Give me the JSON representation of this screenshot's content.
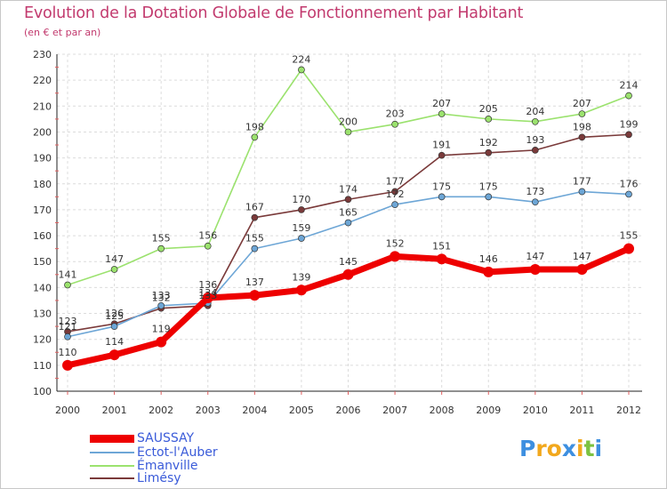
{
  "title": "Evolution de la Dotation Globale de Fonctionnement par Habitant",
  "subtitle": "(en € et par an)",
  "logo": {
    "letters": [
      {
        "ch": "P",
        "color": "#3d8fe0"
      },
      {
        "ch": "r",
        "color": "#f2a81d"
      },
      {
        "ch": "o",
        "color": "#f2a81d"
      },
      {
        "ch": "x",
        "color": "#3d8fe0"
      },
      {
        "ch": "i",
        "color": "#f2a81d"
      },
      {
        "ch": "t",
        "color": "#7cc241"
      },
      {
        "ch": "i",
        "color": "#3d8fe0"
      }
    ]
  },
  "chart_data": {
    "type": "line",
    "title": "Evolution de la Dotation Globale de Fonctionnement par Habitant",
    "subtitle": "(en € et par an)",
    "xlabel": "",
    "ylabel": "",
    "x": [
      "2000",
      "2001",
      "2002",
      "2003",
      "2004",
      "2005",
      "2006",
      "2007",
      "2008",
      "2009",
      "2010",
      "2011",
      "2012"
    ],
    "ylim": [
      100,
      230
    ],
    "yticks": [
      100,
      110,
      120,
      130,
      140,
      150,
      160,
      170,
      180,
      190,
      200,
      210,
      220,
      230
    ],
    "grid": true,
    "legend_position": "bottom-left",
    "series": [
      {
        "name": "SAUSSAY",
        "color": "#ee0000",
        "weight": "bold",
        "values": [
          110,
          114,
          119,
          136,
          137,
          139,
          145,
          152,
          151,
          146,
          147,
          147,
          155
        ],
        "labels": [
          "110",
          "114",
          "119",
          "136",
          "137",
          "139",
          "145",
          "152",
          "151",
          "146",
          "147",
          "147",
          "155"
        ]
      },
      {
        "name": "Ectot-l'Auber",
        "color": "#6da6d6",
        "weight": "normal",
        "values": [
          121,
          125,
          133,
          134,
          155,
          159,
          165,
          172,
          175,
          175,
          173,
          177,
          176
        ],
        "labels": [
          "121",
          "125",
          "133",
          "134",
          "155",
          "159",
          "165",
          "172",
          "175",
          "175",
          "173",
          "177",
          "176"
        ]
      },
      {
        "name": "Émanville",
        "color": "#9be26e",
        "weight": "normal",
        "values": [
          141,
          147,
          155,
          156,
          198,
          224,
          200,
          203,
          207,
          205,
          204,
          207,
          214
        ],
        "labels": [
          "141",
          "147",
          "155",
          "156",
          "198",
          "224",
          "200",
          "203",
          "207",
          "205",
          "204",
          "207",
          "214"
        ]
      },
      {
        "name": "Limésy",
        "color": "#7a3a3a",
        "weight": "normal",
        "values": [
          123,
          126,
          132,
          133,
          167,
          170,
          174,
          177,
          191,
          192,
          193,
          198,
          199
        ],
        "labels": [
          "123",
          "126",
          "132",
          "133",
          "167",
          "170",
          "174",
          "177",
          "191",
          "192",
          "193",
          "198",
          "199"
        ]
      }
    ]
  }
}
